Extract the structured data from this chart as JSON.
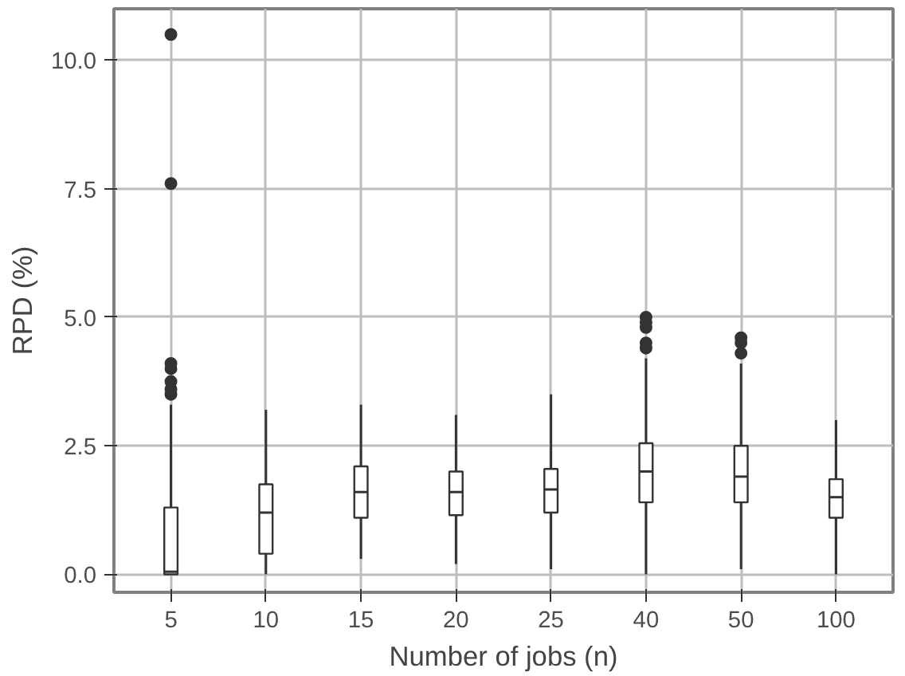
{
  "chart_data": {
    "type": "box",
    "xlabel": "Number of jobs (n)",
    "ylabel": "RPD (%)",
    "categories": [
      "5",
      "10",
      "15",
      "20",
      "25",
      "40",
      "50",
      "100"
    ],
    "ylim": [
      -0.35,
      11.0
    ],
    "yticks": [
      {
        "value": 0,
        "label": "0.0"
      },
      {
        "value": 2.5,
        "label": "2.5"
      },
      {
        "value": 5,
        "label": "5.0"
      },
      {
        "value": 7.5,
        "label": "7.5"
      },
      {
        "value": 10,
        "label": "10.0"
      }
    ],
    "grid": true,
    "series": [
      {
        "color": "#ffffff",
        "boxes": [
          {
            "low": 0,
            "q1": 0,
            "median": 0.05,
            "q3": 1.3,
            "high": 3.3,
            "outliers": [
              3.5,
              3.6,
              3.75,
              4.0,
              4.1,
              7.6,
              10.5
            ]
          },
          {
            "low": 0,
            "q1": 0.4,
            "median": 1.2,
            "q3": 1.75,
            "high": 3.2
          },
          {
            "low": 0.3,
            "q1": 1.1,
            "median": 1.6,
            "q3": 2.1,
            "high": 3.3
          },
          {
            "low": 0.2,
            "q1": 1.15,
            "median": 1.6,
            "q3": 2.0,
            "high": 3.1
          },
          {
            "low": 0.1,
            "q1": 1.2,
            "median": 1.65,
            "q3": 2.05,
            "high": 3.5
          },
          {
            "low": 0,
            "q1": 1.4,
            "median": 2.0,
            "q3": 2.55,
            "high": 4.2,
            "outliers": [
              4.4,
              4.5,
              4.8,
              4.9,
              5.0
            ]
          },
          {
            "low": 0.1,
            "q1": 1.4,
            "median": 1.9,
            "q3": 2.5,
            "high": 4.1,
            "outliers": [
              4.3,
              4.5,
              4.6
            ]
          },
          {
            "low": 0,
            "q1": 1.1,
            "median": 1.5,
            "q3": 1.85,
            "high": 3.0
          }
        ]
      }
    ]
  }
}
